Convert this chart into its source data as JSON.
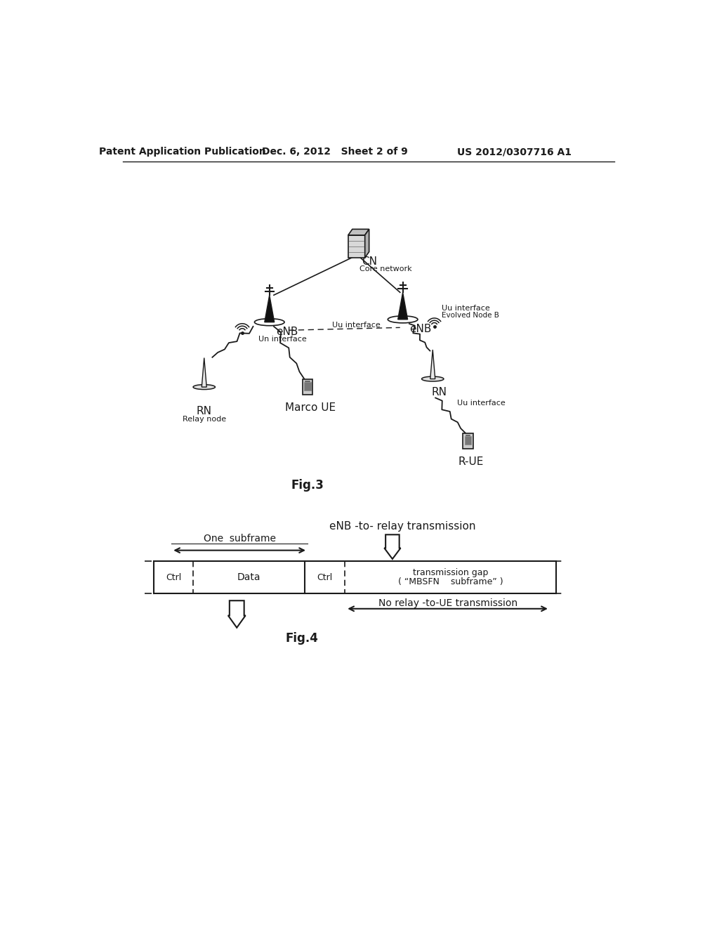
{
  "bg_color": "#ffffff",
  "text_color": "#1a1a1a",
  "header_left": "Patent Application Publication",
  "header_mid": "Dec. 6, 2012   Sheet 2 of 9",
  "header_right": "US 2012/0307716 A1",
  "fig3_label": "Fig.3",
  "fig4_label": "Fig.4",
  "cn_label": "CN",
  "cn_sublabel": "Core network",
  "enb_left_label": "eNB",
  "enb_right_label": "eNB",
  "enb_right_sublabel": "Evolved Node B",
  "rn_left_label": "RN",
  "rn_left_sublabel": "Relay node",
  "rn_right_label": "RN",
  "marco_ue_label": "Marco UE",
  "rue_label": "R-UE",
  "uu_interface_1": "Uu interface",
  "uu_interface_2": "Uu interface",
  "uu_interface_3": "Uu interface",
  "un_interface": "Un interface",
  "enb_to_relay": "eNB -to- relay transmission",
  "no_relay": "No relay -to-UE transmission",
  "one_subframe": "One  subframe",
  "transmission_gap": "transmission gap",
  "mbsfn": "( “MBSFN    subframe” )",
  "ctrl_label": "Ctrl",
  "data_label": "Data"
}
